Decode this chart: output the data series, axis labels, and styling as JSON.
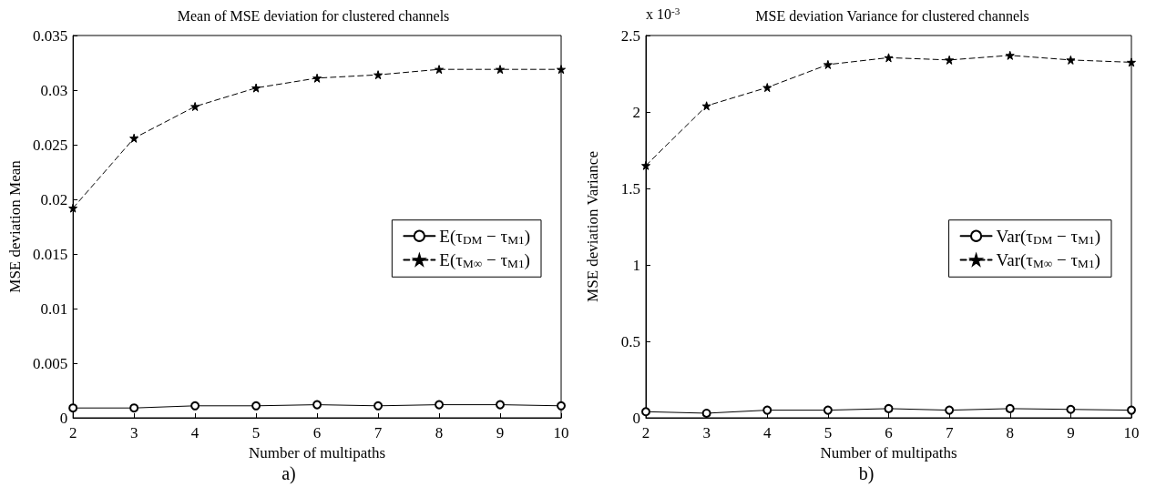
{
  "chart_data": [
    {
      "type": "line",
      "title": "Mean of MSE deviation for clustered channels",
      "xlabel": "Number of multipaths",
      "ylabel": "MSE deviation Mean",
      "x": [
        2,
        3,
        4,
        5,
        6,
        7,
        8,
        9,
        10
      ],
      "series": [
        {
          "name": "E(τ$_{DM}$ − τ$_{M1}$)",
          "color": "#000000",
          "marker": "circle",
          "line_style": "solid",
          "values": [
            0.0009,
            0.0009,
            0.0011,
            0.0011,
            0.0012,
            0.0011,
            0.0012,
            0.0012,
            0.0011
          ]
        },
        {
          "name": "E(τ$_{M∞}$ − τ$_{M1}$)",
          "color": "#000000",
          "marker": "star",
          "line_style": "dashed",
          "values": [
            0.0192,
            0.0256,
            0.0285,
            0.0302,
            0.0311,
            0.0314,
            0.0319,
            0.0319,
            0.0319
          ]
        }
      ],
      "xlim": [
        2,
        10
      ],
      "xticks": [
        2,
        3,
        4,
        5,
        6,
        7,
        8,
        9,
        10
      ],
      "ylim": [
        0,
        0.035
      ],
      "yticks": [
        0,
        0.005,
        0.01,
        0.015,
        0.02,
        0.025,
        0.03,
        0.035
      ],
      "grid": false,
      "legend": "right",
      "annotations": [
        "a)"
      ]
    },
    {
      "type": "line",
      "title": "MSE deviation Variance for clustered channels",
      "xlabel": "Number of multipaths",
      "ylabel": "MSE deviation Variance",
      "x": [
        2,
        3,
        4,
        5,
        6,
        7,
        8,
        9,
        10
      ],
      "series": [
        {
          "name": "Var(τ$_{DM}$ − τ$_{M1}$)",
          "color": "#000000",
          "marker": "circle",
          "line_style": "solid",
          "values": [
            0.04,
            0.03,
            0.05,
            0.05,
            0.06,
            0.05,
            0.06,
            0.055,
            0.05
          ]
        },
        {
          "name": "Var(τ$_{M∞}$ − τ$_{M1}$)",
          "color": "#000000",
          "marker": "star",
          "line_style": "dashed",
          "values": [
            1.65,
            2.04,
            2.16,
            2.31,
            2.355,
            2.34,
            2.37,
            2.34,
            2.325
          ]
        }
      ],
      "xlim": [
        2,
        10
      ],
      "xticks": [
        2,
        3,
        4,
        5,
        6,
        7,
        8,
        9,
        10
      ],
      "ylim": [
        0,
        2.5
      ],
      "yticks": [
        0,
        0.5,
        1,
        1.5,
        2,
        2.5
      ],
      "grid": false,
      "legend": "right",
      "annotations": [
        "x 10$^{-3}$",
        "b)"
      ]
    }
  ]
}
